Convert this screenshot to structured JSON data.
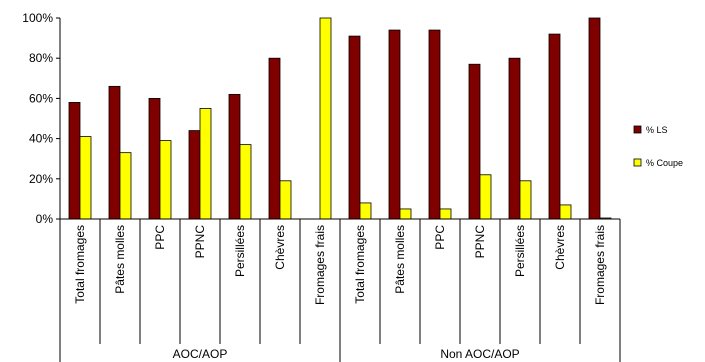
{
  "chart_data": {
    "type": "bar",
    "categories": [
      "Total fromages",
      "Pâtes molles",
      "PPC",
      "PPNC",
      "Persillées",
      "Chèvres",
      "Fromages frais",
      "Total fromages",
      "Pâtes molles",
      "PPC",
      "PPNC",
      "Persillées",
      "Chèvres",
      "Fromages frais"
    ],
    "groups": [
      {
        "label": "AOC/AOP",
        "count": 7
      },
      {
        "label": "Non AOC/AOP",
        "count": 7
      }
    ],
    "series": [
      {
        "name": "% LS",
        "color": "#800000",
        "values": [
          58,
          66,
          60,
          44,
          62,
          80,
          0,
          91,
          94,
          94,
          77,
          80,
          92,
          100
        ]
      },
      {
        "name": "% Coupe",
        "color": "#ffff00",
        "values": [
          41,
          33,
          39,
          55,
          37,
          19,
          100,
          8,
          5,
          5,
          22,
          19,
          7,
          0.5
        ]
      }
    ],
    "ylim": [
      0,
      100
    ],
    "yticks": [
      "0%",
      "20%",
      "40%",
      "60%",
      "80%",
      "100%"
    ],
    "legend_position": "right",
    "grid": false
  }
}
